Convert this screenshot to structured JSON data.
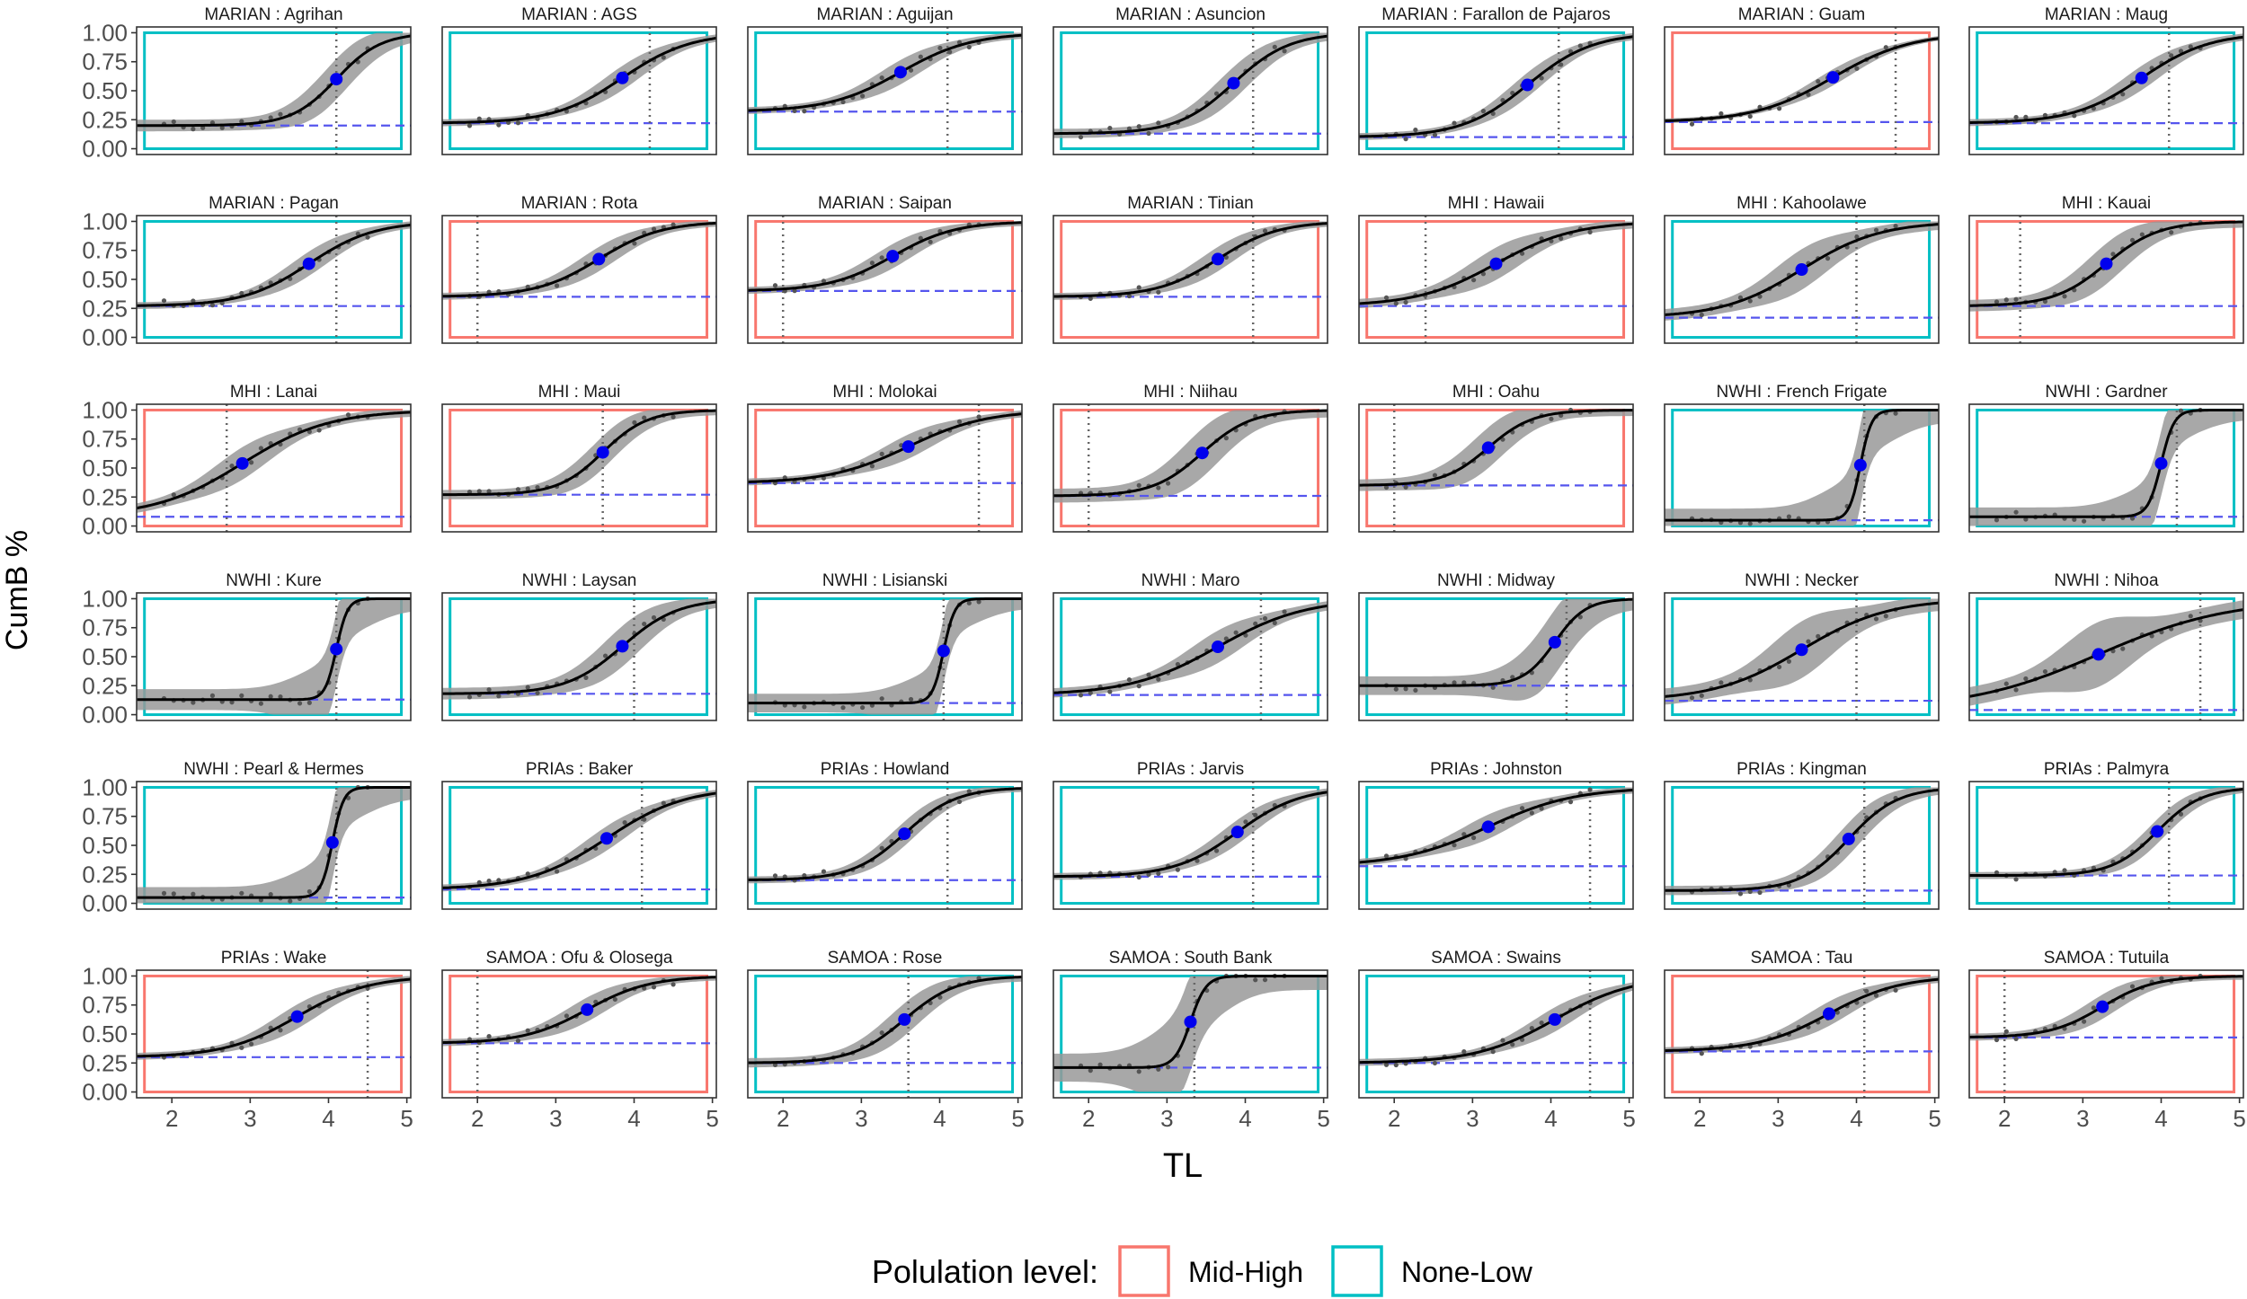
{
  "chart_data": {
    "type": "faceted-line",
    "ylabel": "CumB %",
    "xlabel": "TL",
    "xlim": [
      1.55,
      5.05
    ],
    "ylim": [
      -0.05,
      1.05
    ],
    "x_ticks": [
      2,
      3,
      4,
      5
    ],
    "x_tick_labels": [
      "2",
      "3",
      "4",
      "5"
    ],
    "y_ticks": [
      0,
      0.25,
      0.5,
      0.75,
      1
    ],
    "y_tick_labels": [
      "0.00",
      "0.25",
      "0.50",
      "0.75",
      "1.00"
    ],
    "legend": {
      "title": "Polulation level:",
      "position": "bottom",
      "items": [
        {
          "label": "Mid-High",
          "key": "mid-high",
          "color": "#F8766D"
        },
        {
          "label": "None-Low",
          "key": "none-low",
          "color": "#00BFC4"
        }
      ]
    },
    "colors": {
      "curve": "#000000",
      "band": "#999999",
      "points": "#555555",
      "inflection": "#0000EE",
      "baseline": "#5555EE",
      "vline": "#666666"
    },
    "panels": [
      {
        "title": "MARIAN : Agrihan",
        "level": "none-low",
        "base": 0.2,
        "mid": 4.1,
        "slope": 3.5,
        "vline": 4.1,
        "band": 0.05
      },
      {
        "title": "MARIAN : AGS",
        "level": "none-low",
        "base": 0.22,
        "mid": 3.85,
        "slope": 2.3,
        "vline": 4.2,
        "band": 0.03
      },
      {
        "title": "MARIAN : Aguijan",
        "level": "none-low",
        "base": 0.32,
        "mid": 3.5,
        "slope": 2.2,
        "vline": 4.1,
        "band": 0.03
      },
      {
        "title": "MARIAN : Asuncion",
        "level": "none-low",
        "base": 0.13,
        "mid": 3.85,
        "slope": 2.8,
        "vline": 4.1,
        "band": 0.04
      },
      {
        "title": "MARIAN : Farallon de Pajaros",
        "level": "none-low",
        "base": 0.1,
        "mid": 3.7,
        "slope": 2.4,
        "vline": 4.1,
        "band": 0.03
      },
      {
        "title": "MARIAN : Guam",
        "level": "mid-high",
        "base": 0.23,
        "mid": 3.7,
        "slope": 2.0,
        "vline": 4.5,
        "band": 0.02
      },
      {
        "title": "MARIAN : Maug",
        "level": "none-low",
        "base": 0.22,
        "mid": 3.75,
        "slope": 2.3,
        "vline": 4.1,
        "band": 0.03
      },
      {
        "title": "MARIAN : Pagan",
        "level": "none-low",
        "base": 0.27,
        "mid": 3.75,
        "slope": 2.4,
        "vline": 4.1,
        "band": 0.03
      },
      {
        "title": "MARIAN : Rota",
        "level": "mid-high",
        "base": 0.35,
        "mid": 3.55,
        "slope": 2.5,
        "vline": 2.0,
        "band": 0.03
      },
      {
        "title": "MARIAN : Saipan",
        "level": "mid-high",
        "base": 0.4,
        "mid": 3.4,
        "slope": 2.5,
        "vline": 2.0,
        "band": 0.03
      },
      {
        "title": "MARIAN : Tinian",
        "level": "mid-high",
        "base": 0.35,
        "mid": 3.65,
        "slope": 2.6,
        "vline": 4.1,
        "band": 0.03
      },
      {
        "title": "MHI : Hawaii",
        "level": "mid-high",
        "base": 0.27,
        "mid": 3.3,
        "slope": 2.0,
        "vline": 2.4,
        "band": 0.04
      },
      {
        "title": "MHI : Kahoolawe",
        "level": "none-low",
        "base": 0.17,
        "mid": 3.3,
        "slope": 2.0,
        "vline": 4.0,
        "band": 0.05
      },
      {
        "title": "MHI : Kauai",
        "level": "mid-high",
        "base": 0.27,
        "mid": 3.3,
        "slope": 3.0,
        "vline": 2.2,
        "band": 0.05
      },
      {
        "title": "MHI : Lanai",
        "level": "mid-high",
        "base": 0.08,
        "mid": 2.9,
        "slope": 1.8,
        "vline": 2.7,
        "band": 0.04
      },
      {
        "title": "MHI : Maui",
        "level": "mid-high",
        "base": 0.27,
        "mid": 3.6,
        "slope": 3.5,
        "vline": 3.6,
        "band": 0.04
      },
      {
        "title": "MHI : Molokai",
        "level": "mid-high",
        "base": 0.37,
        "mid": 3.6,
        "slope": 2.0,
        "vline": 4.5,
        "band": 0.03
      },
      {
        "title": "MHI : Niihau",
        "level": "mid-high",
        "base": 0.26,
        "mid": 3.45,
        "slope": 3.2,
        "vline": 2.0,
        "band": 0.06
      },
      {
        "title": "MHI : Oahu",
        "level": "mid-high",
        "base": 0.35,
        "mid": 3.2,
        "slope": 3.5,
        "vline": 2.0,
        "band": 0.05
      },
      {
        "title": "NWHI : French Frigate",
        "level": "none-low",
        "base": 0.05,
        "mid": 4.05,
        "slope": 14,
        "vline": 4.1,
        "band": 0.1
      },
      {
        "title": "NWHI : Gardner",
        "level": "none-low",
        "base": 0.08,
        "mid": 4.0,
        "slope": 12,
        "vline": 4.2,
        "band": 0.08
      },
      {
        "title": "NWHI : Kure",
        "level": "none-low",
        "base": 0.13,
        "mid": 4.1,
        "slope": 14,
        "vline": 4.1,
        "band": 0.09
      },
      {
        "title": "NWHI : Laysan",
        "level": "none-low",
        "base": 0.18,
        "mid": 3.85,
        "slope": 2.8,
        "vline": 4.0,
        "band": 0.05
      },
      {
        "title": "NWHI : Lisianski",
        "level": "none-low",
        "base": 0.1,
        "mid": 4.05,
        "slope": 14,
        "vline": 4.05,
        "band": 0.08
      },
      {
        "title": "NWHI : Maro",
        "level": "none-low",
        "base": 0.17,
        "mid": 3.65,
        "slope": 1.8,
        "vline": 4.2,
        "band": 0.04
      },
      {
        "title": "NWHI : Midway",
        "level": "none-low",
        "base": 0.25,
        "mid": 4.05,
        "slope": 5,
        "vline": 4.2,
        "band": 0.08
      },
      {
        "title": "NWHI : Necker",
        "level": "none-low",
        "base": 0.12,
        "mid": 3.3,
        "slope": 1.8,
        "vline": 4.0,
        "band": 0.07
      },
      {
        "title": "NWHI : Nihoa",
        "level": "none-low",
        "base": 0.04,
        "mid": 3.2,
        "slope": 1.2,
        "vline": 4.5,
        "band": 0.08
      },
      {
        "title": "NWHI : Pearl & Hermes",
        "level": "none-low",
        "base": 0.05,
        "mid": 4.05,
        "slope": 14,
        "vline": 4.1,
        "band": 0.09
      },
      {
        "title": "PRIAs : Baker",
        "level": "none-low",
        "base": 0.12,
        "mid": 3.65,
        "slope": 2.0,
        "vline": 4.1,
        "band": 0.03
      },
      {
        "title": "PRIAs : Howland",
        "level": "none-low",
        "base": 0.2,
        "mid": 3.55,
        "slope": 3.0,
        "vline": 4.1,
        "band": 0.03
      },
      {
        "title": "PRIAs : Jarvis",
        "level": "none-low",
        "base": 0.23,
        "mid": 3.9,
        "slope": 2.5,
        "vline": 4.1,
        "band": 0.03
      },
      {
        "title": "PRIAs : Johnston",
        "level": "none-low",
        "base": 0.32,
        "mid": 3.2,
        "slope": 1.8,
        "vline": 4.5,
        "band": 0.03
      },
      {
        "title": "PRIAs : Kingman",
        "level": "none-low",
        "base": 0.11,
        "mid": 3.9,
        "slope": 3.2,
        "vline": 4.1,
        "band": 0.04
      },
      {
        "title": "PRIAs : Palmyra",
        "level": "none-low",
        "base": 0.24,
        "mid": 3.95,
        "slope": 3.5,
        "vline": 4.1,
        "band": 0.03
      },
      {
        "title": "PRIAs : Wake",
        "level": "mid-high",
        "base": 0.3,
        "mid": 3.6,
        "slope": 2.2,
        "vline": 4.5,
        "band": 0.03
      },
      {
        "title": "SAMOA : Ofu & Olosega",
        "level": "mid-high",
        "base": 0.42,
        "mid": 3.4,
        "slope": 2.5,
        "vline": 2.0,
        "band": 0.03
      },
      {
        "title": "SAMOA : Rose",
        "level": "none-low",
        "base": 0.25,
        "mid": 3.55,
        "slope": 3.0,
        "vline": 3.6,
        "band": 0.04
      },
      {
        "title": "SAMOA : South Bank",
        "level": "none-low",
        "base": 0.21,
        "mid": 3.3,
        "slope": 10,
        "vline": 3.35,
        "band": 0.12
      },
      {
        "title": "SAMOA : Swains",
        "level": "none-low",
        "base": 0.25,
        "mid": 4.05,
        "slope": 2.0,
        "vline": 4.5,
        "band": 0.03
      },
      {
        "title": "SAMOA : Tau",
        "level": "mid-high",
        "base": 0.35,
        "mid": 3.65,
        "slope": 2.2,
        "vline": 4.1,
        "band": 0.03
      },
      {
        "title": "SAMOA : Tutuila",
        "level": "mid-high",
        "base": 0.47,
        "mid": 3.25,
        "slope": 3.0,
        "vline": 2.0,
        "band": 0.03
      }
    ]
  }
}
